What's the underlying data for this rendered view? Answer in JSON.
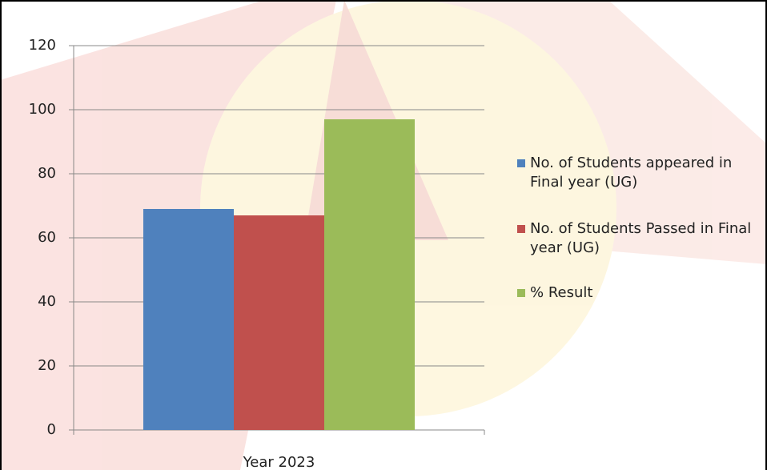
{
  "chart_data": {
    "type": "bar",
    "categories": [
      "Year 2023"
    ],
    "series": [
      {
        "name": "No. of Students appeared in Final year (UG)",
        "color": "#4f81bd",
        "values": [
          69
        ]
      },
      {
        "name": "No. of Students Passed in Final year (UG)",
        "color": "#c0504d",
        "values": [
          67
        ]
      },
      {
        "name": "% Result",
        "color": "#9bbb59",
        "values": [
          97
        ]
      }
    ],
    "ylim": [
      0,
      120
    ],
    "yticks": [
      0,
      20,
      40,
      60,
      80,
      100,
      120
    ],
    "grid": true,
    "legend": "right"
  }
}
